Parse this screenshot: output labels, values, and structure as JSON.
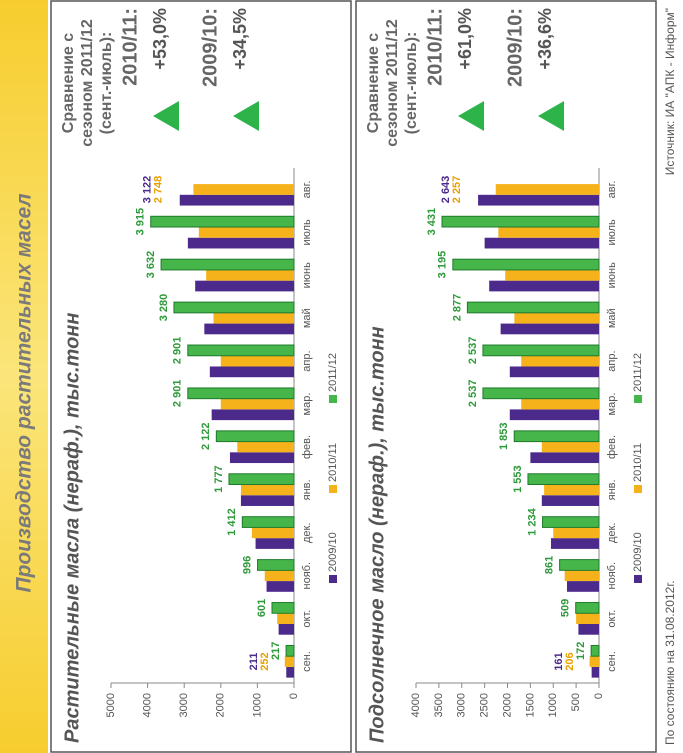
{
  "title": "Производство растительных масел",
  "footer": {
    "date": "По состоянию на 31.08.2012г.",
    "source": "Источник: ИА \"АПК - Информ\""
  },
  "chart_data": [
    {
      "type": "bar",
      "title": "Растительные масла (нераф.), тыс.тонн",
      "categories": [
        "сен.",
        "окт.",
        "нояб.",
        "дек.",
        "янв.",
        "фев.",
        "мар.",
        "апр.",
        "май",
        "июнь",
        "июль",
        "авг."
      ],
      "series": [
        {
          "name": "2009/10",
          "color": "#4b2a8c",
          "values": [
            211,
            420,
            750,
            1050,
            1450,
            1750,
            2250,
            2300,
            2450,
            2700,
            2900,
            3122
          ],
          "value_labels": [
            "211",
            null,
            null,
            null,
            null,
            null,
            null,
            null,
            null,
            null,
            null,
            "3 122"
          ]
        },
        {
          "name": "2010/11",
          "color": "#f6b21b",
          "values": [
            252,
            460,
            800,
            1150,
            1450,
            1550,
            2000,
            2000,
            2200,
            2400,
            2600,
            2748
          ],
          "value_labels": [
            "252",
            null,
            null,
            null,
            null,
            null,
            null,
            null,
            null,
            null,
            null,
            "2 748"
          ]
        },
        {
          "name": "2011/12",
          "color": "#46b64a",
          "values": [
            217,
            601,
            996,
            1412,
            1777,
            2122,
            2901,
            2901,
            3280,
            3632,
            3915,
            null
          ],
          "value_labels": [
            "217",
            "601",
            "996",
            "1 412",
            "1 777",
            "2 122",
            "2 901",
            "2 901",
            "3 280",
            "3 632",
            "3 915",
            null
          ]
        }
      ],
      "ylim": [
        0,
        5000
      ],
      "yticks": [
        0,
        1000,
        2000,
        3000,
        4000,
        5000
      ],
      "grid": false,
      "comparison": {
        "heading": [
          "Сравнение с",
          "сезоном 2011/12",
          "(сент.-июль):"
        ],
        "items": [
          {
            "label": "2010/11:",
            "value": "+53,0%"
          },
          {
            "label": "2009/10:",
            "value": "+34,5%"
          }
        ]
      }
    },
    {
      "type": "bar",
      "title": "Подсолнечное масло (нераф.), тыс.тонн",
      "categories": [
        "сен.",
        "окт.",
        "нояб.",
        "дек.",
        "янв.",
        "фев.",
        "мар.",
        "апр.",
        "май",
        "июнь",
        "июль",
        "авг."
      ],
      "series": [
        {
          "name": "2009/10",
          "color": "#4b2a8c",
          "values": [
            161,
            450,
            700,
            1050,
            1250,
            1500,
            1950,
            1950,
            2150,
            2400,
            2500,
            2643
          ],
          "value_labels": [
            "161",
            null,
            null,
            null,
            null,
            null,
            null,
            null,
            null,
            null,
            null,
            "2 643"
          ]
        },
        {
          "name": "2010/11",
          "color": "#f6b21b",
          "values": [
            206,
            500,
            750,
            1000,
            1200,
            1250,
            1700,
            1700,
            1850,
            2050,
            2200,
            2257
          ],
          "value_labels": [
            "206",
            null,
            null,
            null,
            null,
            null,
            null,
            null,
            null,
            null,
            null,
            "2 257"
          ]
        },
        {
          "name": "2011/12",
          "color": "#46b64a",
          "values": [
            172,
            509,
            861,
            1234,
            1553,
            1853,
            2537,
            2537,
            2877,
            3195,
            3431,
            null
          ],
          "value_labels": [
            "172",
            "509",
            "861",
            "1 234",
            "1 553",
            "1 853",
            "2 537",
            "2 537",
            "2 877",
            "3 195",
            "3 431",
            null
          ]
        }
      ],
      "ylim": [
        0,
        4000
      ],
      "yticks": [
        0,
        500,
        1000,
        1500,
        2000,
        2500,
        3000,
        3500,
        4000
      ],
      "grid": false,
      "comparison": {
        "heading": [
          "Сравнение с",
          "сезоном 2011/12",
          "(сент.-июль):"
        ],
        "items": [
          {
            "label": "2010/11:",
            "value": "+61,0%"
          },
          {
            "label": "2009/10:",
            "value": "+36,6%"
          }
        ]
      }
    }
  ]
}
